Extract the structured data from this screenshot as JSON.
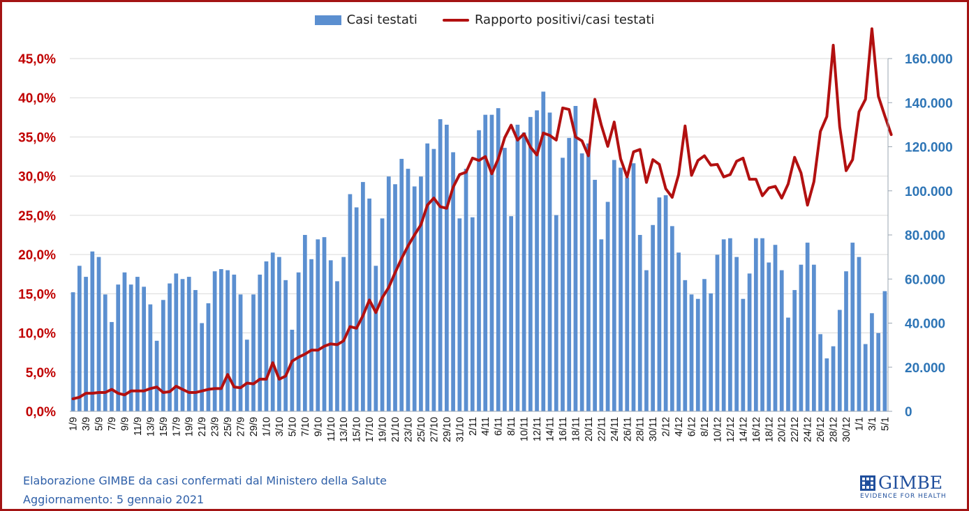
{
  "legend": {
    "bars_label": "Casi testati",
    "line_label": "Rapporto positivi/casi testati"
  },
  "footer": {
    "line1": "Elaborazione GIMBE da casi confermati dal Ministero della Salute",
    "line2": "Aggiornamento: 5 gennaio 2021"
  },
  "logo": {
    "name": "GIMBE",
    "tagline": "EVIDENCE FOR HEALTH",
    "icon": "gimbe-mark-icon"
  },
  "colors": {
    "bars": "#5b8fd0",
    "line": "#b21010",
    "left_axis_text": "#c00000",
    "right_axis_text": "#2e75b6",
    "frame": "#a31414"
  },
  "chart_data": {
    "type": "bar+line",
    "bars_series": "Casi testati",
    "line_series": "Rapporto positivi/casi testati",
    "left_axis": {
      "ylim": [
        0,
        45
      ],
      "ticks": [
        "0,0%",
        "5,0%",
        "10,0%",
        "15,0%",
        "20,0%",
        "25,0%",
        "30,0%",
        "35,0%",
        "40,0%",
        "45,0%"
      ],
      "unit": "%"
    },
    "right_axis": {
      "ylim": [
        0,
        160000
      ],
      "ticks": [
        "0",
        "20.000",
        "40.000",
        "60.000",
        "80.000",
        "100.000",
        "120.000",
        "140.000",
        "160.000"
      ]
    },
    "grid": true,
    "legend_position": "top",
    "x_tick_labels": [
      "1/9",
      "3/9",
      "5/9",
      "7/9",
      "9/9",
      "11/9",
      "13/9",
      "15/9",
      "17/9",
      "19/9",
      "21/9",
      "23/9",
      "25/9",
      "27/9",
      "29/9",
      "1/10",
      "3/10",
      "5/10",
      "7/10",
      "9/10",
      "11/10",
      "13/10",
      "15/10",
      "17/10",
      "19/10",
      "21/10",
      "23/10",
      "25/10",
      "27/10",
      "29/10",
      "31/10",
      "2/11",
      "4/11",
      "6/11",
      "8/11",
      "10/11",
      "12/11",
      "14/11",
      "16/11",
      "18/11",
      "20/11",
      "22/11",
      "24/11",
      "26/11",
      "28/11",
      "30/11",
      "2/12",
      "4/12",
      "6/12",
      "8/12",
      "10/12",
      "12/12",
      "14/12",
      "16/12",
      "18/12",
      "20/12",
      "22/12",
      "24/12",
      "26/12",
      "28/12",
      "30/12",
      "1/1",
      "3/1",
      "5/1"
    ],
    "bars": [
      54000,
      66000,
      61000,
      72500,
      70000,
      53000,
      40500,
      57500,
      63000,
      57500,
      61000,
      56500,
      48500,
      32000,
      50500,
      58000,
      62500,
      60000,
      61000,
      55000,
      40000,
      49000,
      63500,
      64500,
      64000,
      62000,
      53000,
      32500,
      53000,
      62000,
      68000,
      72000,
      70000,
      59500,
      37000,
      63000,
      80000,
      69000,
      78000,
      79000,
      68500,
      59000,
      70000,
      98500,
      92500,
      104000,
      96500,
      66000,
      87500,
      106500,
      103000,
      114500,
      110000,
      102000,
      106500,
      121500,
      119000,
      132500,
      130000,
      117500,
      87500,
      110000,
      88000,
      127500,
      134500,
      134500,
      137500,
      119500,
      88500,
      130000,
      126500,
      133500,
      136500,
      145000,
      135500,
      89000,
      115000,
      124000,
      138500,
      117000,
      121500,
      105000,
      78000,
      95000,
      114000,
      110500,
      106000,
      112500,
      80000,
      64000,
      84500,
      97000,
      98000,
      84000,
      72000,
      59500,
      53000,
      51000,
      60000,
      53500,
      71000,
      78000,
      78500,
      70000,
      51000,
      62500,
      78500,
      78500,
      67500,
      75500,
      64000,
      42500,
      55000,
      66500,
      76500,
      66500,
      35000,
      24000,
      29500,
      46000,
      63500,
      76500,
      70000,
      30500,
      44500,
      35500,
      54500
    ],
    "ratio": [
      1.6,
      1.8,
      2.3,
      2.3,
      2.4,
      2.4,
      2.8,
      2.3,
      2.1,
      2.6,
      2.6,
      2.6,
      2.9,
      3.1,
      2.4,
      2.5,
      3.2,
      2.8,
      2.4,
      2.4,
      2.6,
      2.8,
      2.9,
      2.9,
      4.7,
      3.1,
      3.0,
      3.6,
      3.5,
      4.1,
      4.1,
      6.2,
      4.1,
      4.5,
      6.4,
      6.9,
      7.3,
      7.8,
      7.8,
      8.3,
      8.6,
      8.5,
      9.0,
      10.8,
      10.6,
      12.2,
      14.2,
      12.6,
      14.5,
      15.8,
      17.7,
      19.5,
      21.1,
      22.5,
      23.8,
      26.3,
      27.2,
      26.1,
      25.9,
      28.6,
      30.2,
      30.5,
      32.3,
      32.0,
      32.5,
      30.3,
      32.2,
      34.9,
      36.5,
      34.6,
      35.4,
      33.7,
      32.7,
      35.5,
      35.2,
      34.6,
      38.7,
      38.5,
      35.0,
      34.5,
      32.6,
      39.8,
      36.5,
      33.8,
      36.9,
      32.2,
      29.9,
      33.1,
      33.4,
      29.2,
      32.1,
      31.5,
      28.4,
      27.3,
      30.2,
      36.4,
      30.1,
      32.0,
      32.6,
      31.4,
      31.5,
      29.9,
      30.2,
      31.9,
      32.3,
      29.6,
      29.6,
      27.5,
      28.5,
      28.7,
      27.2,
      29.0,
      32.4,
      30.4,
      26.3,
      29.3,
      35.7,
      37.6,
      46.7,
      36.3,
      30.7,
      32.1,
      38.2,
      39.8,
      48.8,
      40.2,
      37.7,
      35.3
    ]
  }
}
